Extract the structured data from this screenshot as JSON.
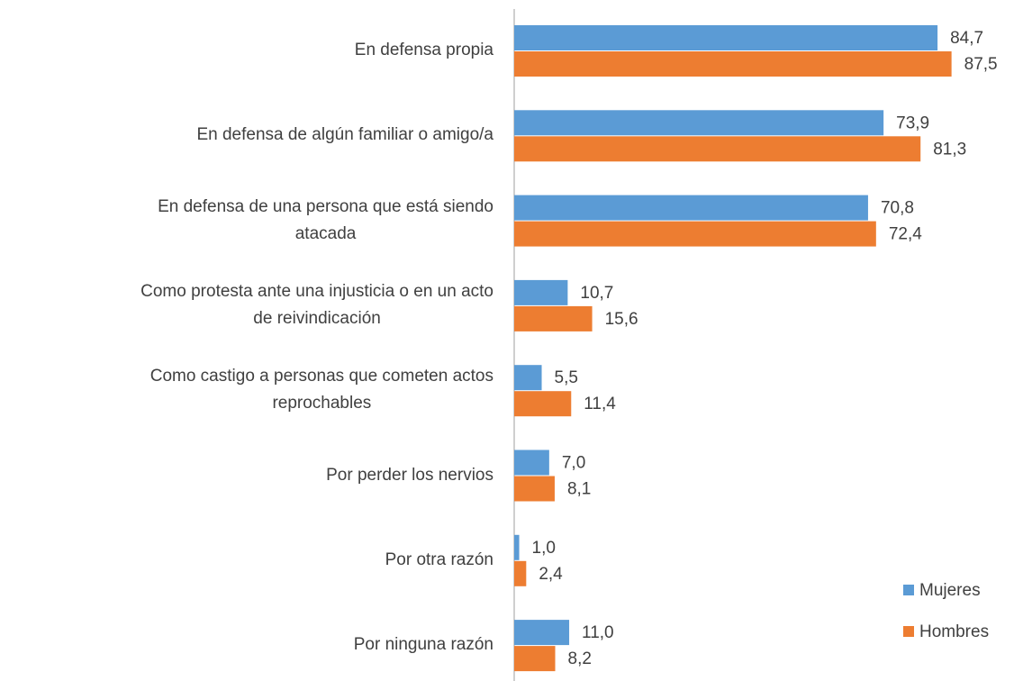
{
  "chart_data": {
    "type": "bar",
    "orientation": "horizontal",
    "categories": [
      "En defensa propia",
      "En defensa de algún  familiar o amigo/a",
      "En defensa de una  persona que está siendo\natacada",
      "Como protesta ante una  injusticia o en un acto\nde reivindicación",
      "Como castigo a personas  que cometen actos\nreprochables",
      "Por perder los nervios",
      "Por otra razón",
      "Por ninguna razón"
    ],
    "series": [
      {
        "name": "Mujeres",
        "color": "#5b9bd5",
        "values": [
          84.7,
          73.9,
          70.8,
          10.7,
          5.5,
          7.0,
          1.0,
          11.0
        ],
        "value_labels": [
          "84,7",
          "73,9",
          "70,8",
          "10,7",
          "5,5",
          "7,0",
          "1,0",
          "11,0"
        ]
      },
      {
        "name": "Hombres",
        "color": "#ed7d31",
        "values": [
          87.5,
          81.3,
          72.4,
          15.6,
          11.4,
          8.1,
          2.4,
          8.2
        ],
        "value_labels": [
          "87,5",
          "81,3",
          "72,4",
          "15,6",
          "11,4",
          "8,1",
          "2,4",
          "8,2"
        ]
      }
    ],
    "xlim": [
      0,
      100
    ],
    "legend": "bottom-right"
  }
}
